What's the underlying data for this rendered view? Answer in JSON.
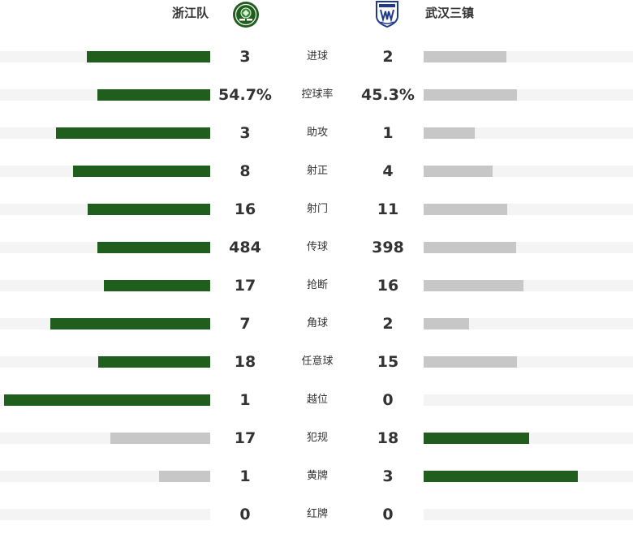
{
  "home_team": {
    "name": "浙江队",
    "logo_icon": "zhejiang-club-crest"
  },
  "away_team": {
    "name": "武汉三镇",
    "logo_icon": "wuhan-three-towns-crest"
  },
  "colors": {
    "leader": "#1f5e1c",
    "trailer": "#c7c7c7",
    "track": "#f4f4f4"
  },
  "stats": [
    {
      "label": "进球",
      "home": "3",
      "away": "2",
      "home_share": 0.6,
      "away_share": 0.4
    },
    {
      "label": "控球率",
      "home": "54.7%",
      "away": "45.3%",
      "home_share": 0.547,
      "away_share": 0.453
    },
    {
      "label": "助攻",
      "home": "3",
      "away": "1",
      "home_share": 0.75,
      "away_share": 0.25
    },
    {
      "label": "射正",
      "home": "8",
      "away": "4",
      "home_share": 0.667,
      "away_share": 0.333
    },
    {
      "label": "射门",
      "home": "16",
      "away": "11",
      "home_share": 0.593,
      "away_share": 0.407
    },
    {
      "label": "传球",
      "home": "484",
      "away": "398",
      "home_share": 0.549,
      "away_share": 0.451
    },
    {
      "label": "抢断",
      "home": "17",
      "away": "16",
      "home_share": 0.515,
      "away_share": 0.485
    },
    {
      "label": "角球",
      "home": "7",
      "away": "2",
      "home_share": 0.778,
      "away_share": 0.222
    },
    {
      "label": "任意球",
      "home": "18",
      "away": "15",
      "home_share": 0.545,
      "away_share": 0.455
    },
    {
      "label": "越位",
      "home": "1",
      "away": "0",
      "home_share": 1.0,
      "away_share": 0.0
    },
    {
      "label": "犯规",
      "home": "17",
      "away": "18",
      "home_share": 0.486,
      "away_share": 0.514
    },
    {
      "label": "黄牌",
      "home": "1",
      "away": "3",
      "home_share": 0.25,
      "away_share": 0.75
    },
    {
      "label": "红牌",
      "home": "0",
      "away": "0",
      "home_share": 0.0,
      "away_share": 0.0
    }
  ]
}
